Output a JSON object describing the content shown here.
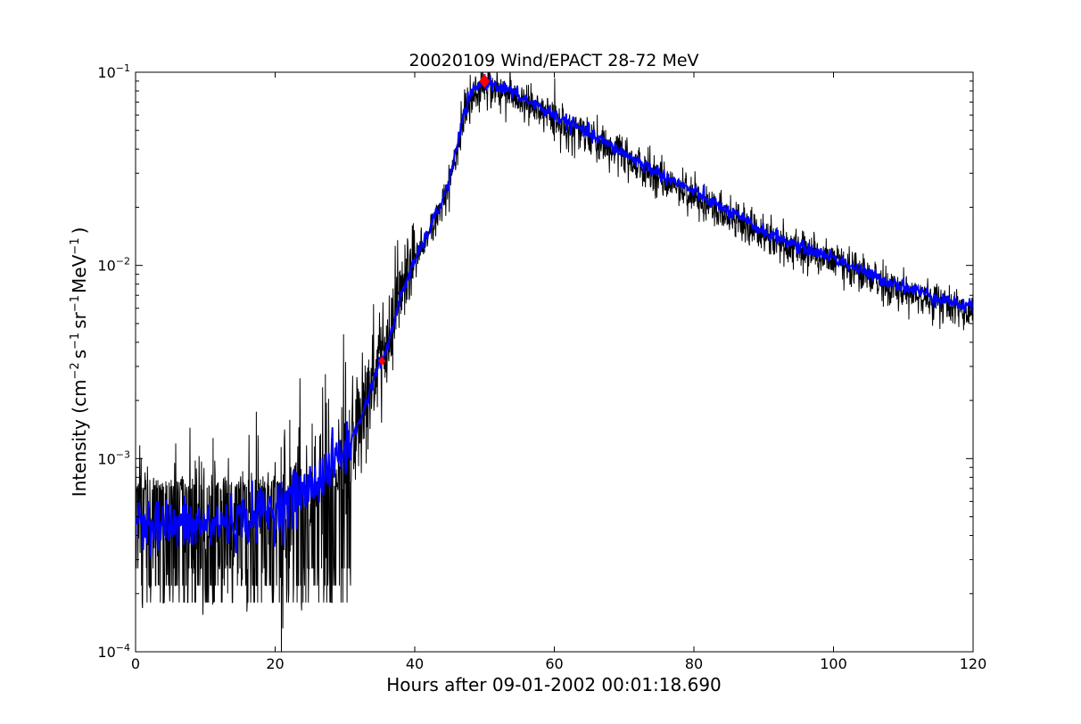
{
  "chart_data": {
    "type": "line",
    "title": "20020109 Wind/EPACT 28-72 MeV",
    "xlabel": "Hours after 09-01-2002 00:01:18.690",
    "ylabel_parts": {
      "prefix": "Intensity (cm",
      "exp1": "−2",
      "s": "s",
      "exp2": "−1",
      "sr": "sr",
      "exp3": "−1",
      "mev": "MeV",
      "exp4": "−1",
      "suffix": ")"
    },
    "xlim": [
      0,
      120
    ],
    "ylim": [
      0.0001,
      0.1
    ],
    "yscale": "log",
    "grid": false,
    "x_ticks": [
      0,
      20,
      40,
      60,
      80,
      100,
      120
    ],
    "x_tick_labels": [
      "0",
      "20",
      "40",
      "60",
      "80",
      "100",
      "120"
    ],
    "y_ticks": [
      {
        "value": 0.0001,
        "mantissa": "10",
        "exp": "−4"
      },
      {
        "value": 0.001,
        "mantissa": "10",
        "exp": "−3"
      },
      {
        "value": 0.01,
        "mantissa": "10",
        "exp": "−2"
      },
      {
        "value": 0.1,
        "mantissa": "10",
        "exp": "−1"
      }
    ],
    "series": [
      {
        "color": "#000000",
        "style": "raw-noisy",
        "x": [
          0,
          5,
          10,
          15,
          20,
          25,
          30,
          32,
          34,
          35,
          36,
          38,
          40,
          42,
          44,
          45,
          46,
          47,
          48,
          49,
          50,
          52,
          55,
          60,
          65,
          70,
          75,
          80,
          85,
          90,
          95,
          100,
          105,
          110,
          115,
          120
        ],
        "y": [
          0.0005,
          0.00045,
          0.00045,
          0.00048,
          0.00055,
          0.0007,
          0.0011,
          0.0015,
          0.0025,
          0.0032,
          0.0036,
          0.007,
          0.0105,
          0.015,
          0.022,
          0.028,
          0.04,
          0.06,
          0.075,
          0.085,
          0.09,
          0.085,
          0.075,
          0.06,
          0.048,
          0.038,
          0.03,
          0.024,
          0.019,
          0.015,
          0.0125,
          0.011,
          0.009,
          0.0078,
          0.0068,
          0.006
        ]
      },
      {
        "color": "#0000ff",
        "style": "smoothed",
        "x": [
          0,
          5,
          10,
          15,
          20,
          25,
          30,
          32,
          34,
          35,
          36,
          38,
          40,
          42,
          44,
          45,
          46,
          47,
          48,
          49,
          50,
          52,
          55,
          60,
          65,
          70,
          75,
          80,
          85,
          90,
          95,
          100,
          105,
          110,
          115,
          120
        ],
        "y": [
          0.0005,
          0.00045,
          0.00045,
          0.00048,
          0.00055,
          0.0007,
          0.0011,
          0.0015,
          0.0025,
          0.0032,
          0.0036,
          0.007,
          0.0105,
          0.015,
          0.022,
          0.028,
          0.04,
          0.06,
          0.075,
          0.085,
          0.09,
          0.085,
          0.075,
          0.06,
          0.048,
          0.038,
          0.03,
          0.024,
          0.019,
          0.015,
          0.0125,
          0.011,
          0.009,
          0.0078,
          0.0068,
          0.006
        ]
      }
    ],
    "markers": [
      {
        "x": 35.3,
        "y": 0.0032,
        "color": "#ff0000",
        "size": "small"
      },
      {
        "x": 50.0,
        "y": 0.09,
        "color": "#ff0000",
        "size": "large"
      }
    ]
  }
}
